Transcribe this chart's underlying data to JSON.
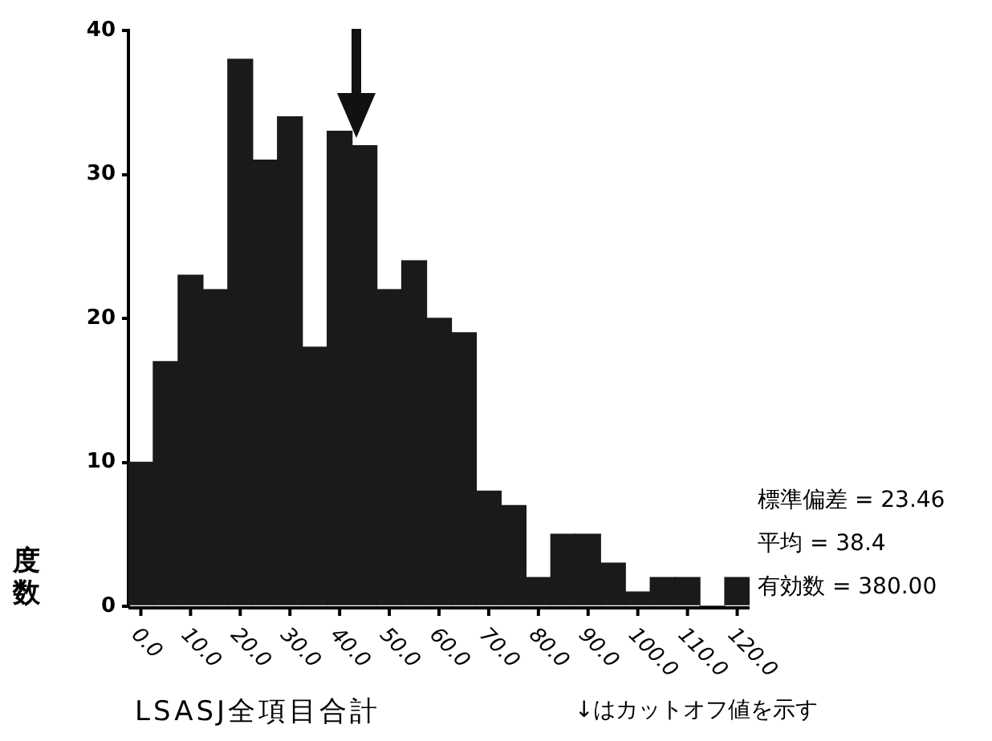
{
  "chart_data": {
    "type": "histogram",
    "xlabel": "LSASJ全項目合計",
    "ylabel": "度数",
    "bins": [
      -2.5,
      2.5,
      7.5,
      12.5,
      17.5,
      22.5,
      27.5,
      32.5,
      37.5,
      42.5,
      47.5,
      52.5,
      57.5,
      62.5,
      67.5,
      72.5,
      77.5,
      82.5,
      87.5,
      92.5,
      97.5,
      102.5,
      107.5,
      112.5,
      117.5,
      122.5
    ],
    "values": [
      10,
      17,
      23,
      22,
      38,
      31,
      34,
      18,
      33,
      32,
      22,
      24,
      20,
      19,
      8,
      7,
      2,
      5,
      5,
      3,
      1,
      2,
      2,
      0,
      2
    ],
    "color": "#1a1a1a",
    "xlim": [
      -2.5,
      122.5
    ],
    "xticks": [
      {
        "value": 0,
        "label": "0.0"
      },
      {
        "value": 10,
        "label": "10.0"
      },
      {
        "value": 20,
        "label": "20.0"
      },
      {
        "value": 30,
        "label": "30.0"
      },
      {
        "value": 40,
        "label": "40.0"
      },
      {
        "value": 50,
        "label": "50.0"
      },
      {
        "value": 60,
        "label": "60.0"
      },
      {
        "value": 70,
        "label": "70.0"
      },
      {
        "value": 80,
        "label": "80.0"
      },
      {
        "value": 90,
        "label": "90.0"
      },
      {
        "value": 100,
        "label": "100.0"
      },
      {
        "value": 110,
        "label": "110.0"
      },
      {
        "value": 120,
        "label": "120.0"
      }
    ],
    "ylim": [
      0,
      40
    ],
    "yticks": [
      0,
      10,
      20,
      30,
      40
    ],
    "grid": false,
    "legend": false,
    "annotations": [
      "標準偏差 = 23.46",
      "平均 = 38.4",
      "有効数 = 380.00",
      "↓はカットオフ値を示す"
    ]
  }
}
